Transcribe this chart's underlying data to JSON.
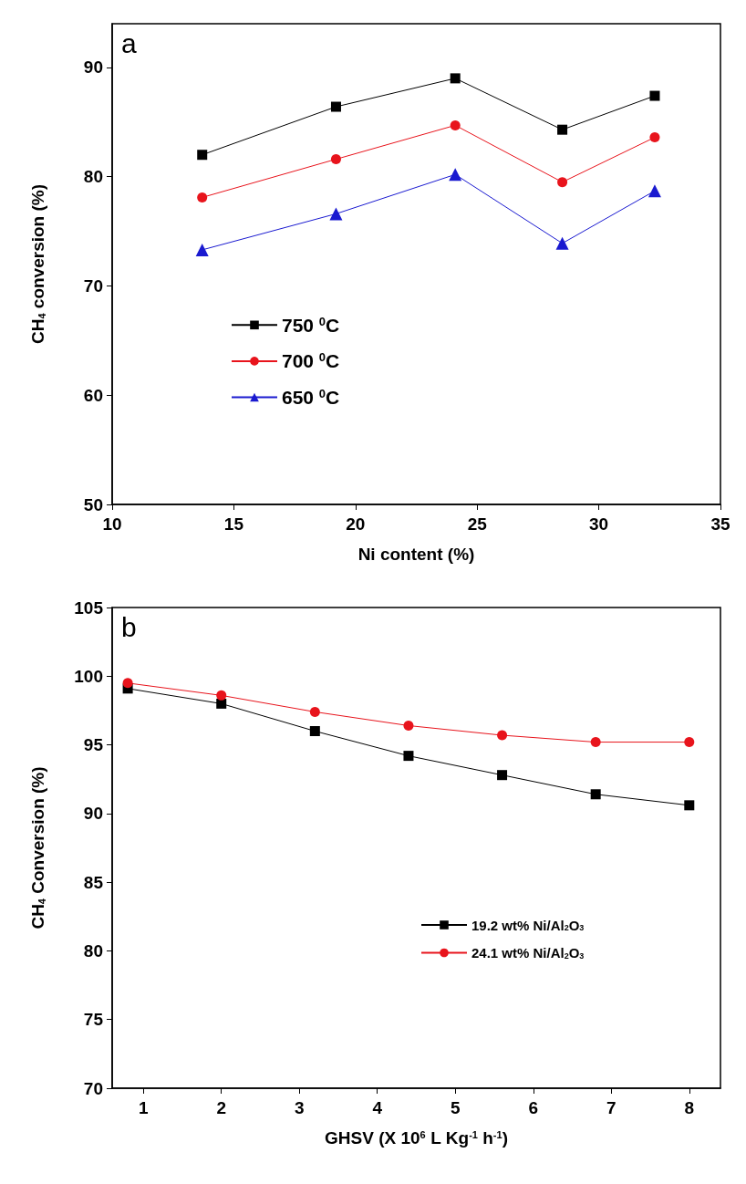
{
  "chart_data": [
    {
      "type": "line",
      "xlabel": "Ni content (%)",
      "ylabel": "CH$_{4}$ conversion (%)",
      "annotations": [
        "a"
      ],
      "x": [
        13.7,
        19.2,
        24.1,
        28.5,
        32.3
      ],
      "series": [
        {
          "name": "750 $^{0}$C",
          "color": "#000000",
          "marker": "square",
          "values": [
            82.0,
            86.4,
            89.0,
            84.3,
            87.4
          ]
        },
        {
          "name": "700 $^{0}$C",
          "color": "#e8141c",
          "marker": "circle",
          "values": [
            78.1,
            81.6,
            84.7,
            79.5,
            83.6
          ]
        },
        {
          "name": "650 $^{0}$C",
          "color": "#1a1ad0",
          "marker": "triangle",
          "values": [
            73.3,
            76.6,
            80.2,
            73.9,
            78.7
          ]
        }
      ],
      "xlim": [
        10,
        35
      ],
      "xticks": [
        10,
        15,
        20,
        25,
        30,
        35
      ],
      "ylim": [
        50,
        94
      ],
      "yticks": [
        50,
        60,
        70,
        80,
        90
      ],
      "grid": false,
      "legend": "center"
    },
    {
      "type": "line",
      "xlabel": "GHSV (X 10$^{6}$ L Kg$^{-1}$ h$^{-1}$)",
      "ylabel": "CH$_{4}$ Conversion (%)",
      "annotations": [
        "b"
      ],
      "x": [
        0.8,
        2.0,
        3.2,
        4.4,
        5.6,
        6.8,
        8.0
      ],
      "series": [
        {
          "name": "19.2 wt% Ni/Al$_{2}$O$_{3}$",
          "color": "#000000",
          "marker": "square",
          "values": [
            99.1,
            98.0,
            96.0,
            94.2,
            92.8,
            91.4,
            90.6
          ]
        },
        {
          "name": "24.1 wt% Ni/Al$_{2}$O$_{3}$",
          "color": "#e8141c",
          "marker": "circle",
          "values": [
            99.5,
            98.6,
            97.4,
            96.4,
            95.7,
            95.2,
            95.2
          ]
        }
      ],
      "xlim": [
        0.6,
        8.4
      ],
      "xticks": [
        1,
        2,
        3,
        4,
        5,
        6,
        7,
        8
      ],
      "ylim": [
        70,
        105
      ],
      "yticks": [
        70,
        75,
        80,
        85,
        90,
        95,
        100,
        105
      ],
      "grid": false,
      "legend": "right"
    }
  ]
}
